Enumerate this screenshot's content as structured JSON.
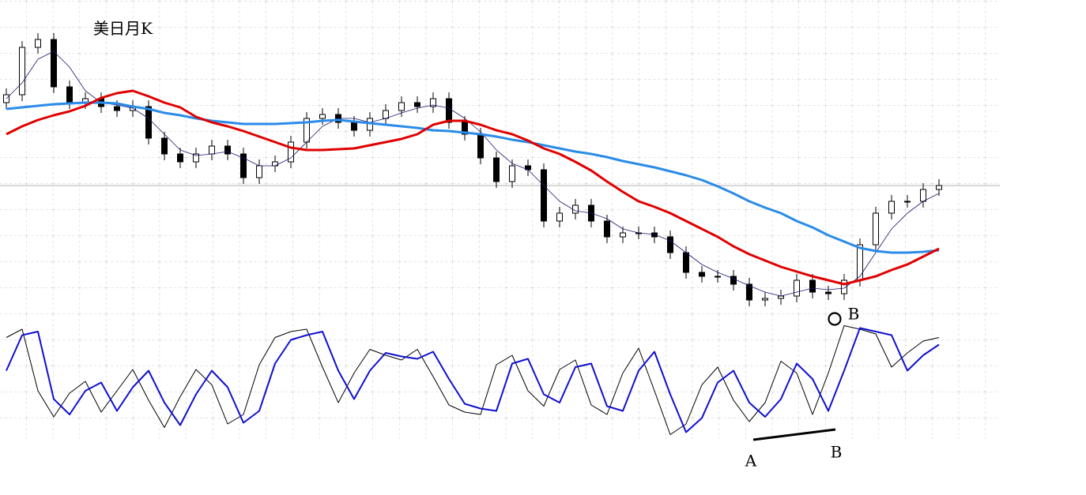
{
  "chart_data": [
    {
      "type": "candlestick",
      "title": "美日月K",
      "x": [
        0,
        1,
        2,
        3,
        4,
        5,
        6,
        7,
        8,
        9,
        10,
        11,
        12,
        13,
        14,
        15,
        16,
        17,
        18,
        19,
        20,
        21,
        22,
        23,
        24,
        25,
        26,
        27,
        28,
        29,
        30,
        31,
        32,
        33,
        34,
        35,
        36,
        37,
        38,
        39,
        40,
        41,
        42,
        43,
        44,
        45,
        46,
        47,
        48,
        49,
        50,
        51,
        52,
        53,
        54,
        55,
        56,
        57,
        58,
        59
      ],
      "xlim": [
        -0.4,
        62.85
      ],
      "ylim": [
        0,
        360
      ],
      "open": [
        265,
        275,
        335,
        345,
        285,
        265,
        270,
        260,
        255,
        260,
        220,
        200,
        190,
        200,
        210,
        200,
        170,
        185,
        190,
        215,
        245,
        250,
        240,
        230,
        245,
        255,
        265,
        260,
        270,
        240,
        225,
        195,
        165,
        185,
        180,
        115,
        125,
        135,
        115,
        95,
        100,
        100,
        95,
        75,
        50,
        45,
        45,
        35,
        15,
        17,
        20,
        40,
        25,
        23,
        40,
        85,
        125,
        140,
        140,
        155
      ],
      "high": [
        283,
        343,
        353,
        353,
        293,
        278,
        278,
        268,
        268,
        268,
        228,
        208,
        208,
        218,
        218,
        208,
        193,
        198,
        223,
        253,
        258,
        258,
        248,
        253,
        263,
        273,
        273,
        278,
        278,
        248,
        233,
        203,
        193,
        193,
        188,
        133,
        143,
        143,
        123,
        108,
        108,
        108,
        103,
        83,
        58,
        53,
        53,
        43,
        25,
        28,
        48,
        48,
        33,
        48,
        93,
        133,
        148,
        148,
        163,
        168
      ],
      "low": [
        257,
        267,
        327,
        277,
        257,
        257,
        252,
        247,
        247,
        212,
        192,
        182,
        182,
        192,
        192,
        162,
        162,
        177,
        182,
        207,
        237,
        232,
        222,
        222,
        237,
        247,
        252,
        252,
        232,
        217,
        187,
        157,
        157,
        172,
        107,
        107,
        117,
        107,
        87,
        87,
        92,
        87,
        67,
        42,
        37,
        37,
        27,
        7,
        7,
        9,
        12,
        17,
        15,
        15,
        32,
        77,
        117,
        132,
        132,
        147
      ],
      "close": [
        275,
        335,
        345,
        285,
        265,
        270,
        260,
        255,
        260,
        220,
        200,
        190,
        200,
        210,
        200,
        170,
        185,
        190,
        215,
        245,
        250,
        240,
        230,
        245,
        255,
        265,
        260,
        270,
        240,
        225,
        195,
        165,
        185,
        180,
        115,
        125,
        135,
        115,
        95,
        100,
        100,
        95,
        75,
        50,
        45,
        45,
        35,
        15,
        17,
        20,
        40,
        25,
        23,
        40,
        85,
        125,
        140,
        140,
        155,
        160
      ],
      "up_color": "#ffffff",
      "down_color": "#000000",
      "series": [
        {
          "color": "#1a1a6e",
          "width": 0.8,
          "values": [
            270,
            290,
            320,
            330,
            310,
            280,
            265,
            262,
            258,
            245,
            225,
            205,
            198,
            200,
            203,
            195,
            185,
            185,
            195,
            215,
            235,
            245,
            245,
            240,
            245,
            252,
            258,
            262,
            258,
            245,
            228,
            205,
            188,
            180,
            160,
            140,
            128,
            125,
            118,
            105,
            100,
            98,
            90,
            75,
            60,
            50,
            42,
            33,
            25,
            20,
            25,
            30,
            28,
            30,
            45,
            75,
            105,
            125,
            140,
            150
          ]
        },
        {
          "color": "#2a8be8",
          "width": 3,
          "values": [
            257,
            259,
            261,
            263,
            264,
            265,
            265,
            264,
            260,
            257,
            252,
            249,
            245,
            242,
            240,
            238,
            238,
            238,
            239,
            240,
            242,
            243,
            241,
            239,
            237,
            235,
            233,
            230,
            229,
            227,
            225,
            222,
            218,
            215,
            211,
            207,
            203,
            200,
            196,
            191,
            187,
            183,
            178,
            173,
            167,
            159,
            150,
            140,
            132,
            125,
            115,
            107,
            97,
            89,
            81,
            77,
            75,
            75,
            76,
            78
          ]
        },
        {
          "color": "#e00000",
          "width": 3,
          "values": [
            225,
            235,
            243,
            249,
            254,
            261,
            271,
            277,
            280,
            273,
            265,
            259,
            247,
            240,
            235,
            229,
            222,
            215,
            208,
            205,
            205,
            206,
            207,
            211,
            215,
            219,
            225,
            237,
            242,
            242,
            237,
            230,
            225,
            217,
            207,
            200,
            190,
            179,
            165,
            152,
            140,
            133,
            125,
            115,
            105,
            95,
            83,
            73,
            65,
            57,
            51,
            45,
            40,
            35,
            40,
            45,
            53,
            60,
            70,
            80
          ]
        }
      ],
      "annotations": [
        "B"
      ]
    },
    {
      "type": "line",
      "x": [
        0,
        1,
        2,
        3,
        4,
        5,
        6,
        7,
        8,
        9,
        10,
        11,
        12,
        13,
        14,
        15,
        16,
        17,
        18,
        19,
        20,
        21,
        22,
        23,
        24,
        25,
        26,
        27,
        28,
        29,
        30,
        31,
        32,
        33,
        34,
        35,
        36,
        37,
        38,
        39,
        40,
        41,
        42,
        43,
        44,
        45,
        46,
        47,
        48,
        49,
        50,
        51,
        52,
        53,
        54,
        55,
        56,
        57,
        58,
        59
      ],
      "xlim": [
        -0.4,
        62.85
      ],
      "ylim": [
        0,
        100
      ],
      "series": [
        {
          "color": "#000000",
          "width": 1,
          "values": [
            85,
            92,
            40,
            18,
            38,
            48,
            22,
            40,
            58,
            32,
            9,
            35,
            58,
            45,
            12,
            20,
            62,
            85,
            90,
            92,
            60,
            30,
            55,
            75,
            70,
            66,
            75,
            52,
            28,
            22,
            20,
            62,
            70,
            40,
            27,
            58,
            66,
            28,
            20,
            55,
            76,
            40,
            3,
            12,
            45,
            60,
            32,
            14,
            30,
            65,
            55,
            20,
            55,
            95,
            92,
            88,
            60,
            72,
            82,
            85
          ]
        },
        {
          "color": "#1010d0",
          "width": 2,
          "values": [
            57,
            87,
            90,
            33,
            20,
            40,
            47,
            23,
            43,
            57,
            30,
            11,
            37,
            57,
            43,
            13,
            23,
            63,
            83,
            87,
            90,
            57,
            33,
            57,
            72,
            69,
            67,
            73,
            50,
            29,
            25,
            23,
            63,
            67,
            37,
            30,
            60,
            63,
            27,
            23,
            57,
            73,
            37,
            5,
            17,
            47,
            57,
            30,
            18,
            33,
            63,
            50,
            23,
            57,
            93,
            90,
            87,
            57,
            70,
            79
          ]
        }
      ],
      "annotations": [
        "A",
        "B"
      ]
    }
  ]
}
